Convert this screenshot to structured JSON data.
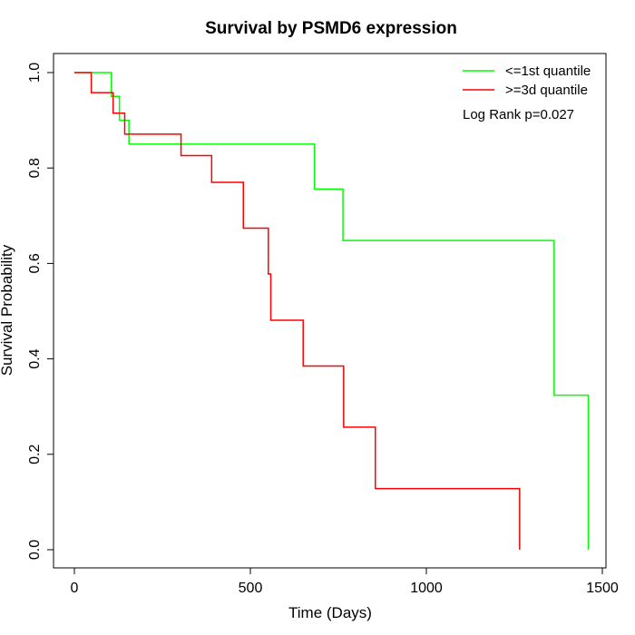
{
  "chart_data": {
    "type": "line",
    "title": "Survival by PSMD6 expression",
    "xlabel": "Time (Days)",
    "ylabel": "Survival Probability",
    "xlim": [
      0,
      1500
    ],
    "ylim": [
      0,
      1
    ],
    "x_ticks": [
      0,
      500,
      1000,
      1500
    ],
    "x_tick_labels": [
      "0",
      "500",
      "1000",
      "1500"
    ],
    "y_ticks": [
      0,
      0.2,
      0.4,
      0.6,
      0.8,
      1.0
    ],
    "y_tick_labels": [
      "0.0",
      "0.2",
      "0.4",
      "0.6",
      "0.8",
      "1.0"
    ],
    "grid": false,
    "legend_position": "top-right",
    "annotation": "Log Rank p=0.027",
    "series": [
      {
        "name": "<=1st quantile",
        "color": "#00ff00",
        "step": true,
        "points": [
          [
            0,
            1.0
          ],
          [
            105,
            1.0
          ],
          [
            105,
            0.95
          ],
          [
            128,
            0.95
          ],
          [
            128,
            0.9
          ],
          [
            155,
            0.9
          ],
          [
            155,
            0.85
          ],
          [
            682,
            0.85
          ],
          [
            682,
            0.756
          ],
          [
            763,
            0.756
          ],
          [
            763,
            0.648
          ],
          [
            1363,
            0.648
          ],
          [
            1363,
            0.324
          ],
          [
            1460,
            0.324
          ],
          [
            1460,
            0.0
          ]
        ]
      },
      {
        "name": ">=3d quantile",
        "color": "#ff0000",
        "step": true,
        "points": [
          [
            0,
            1.0
          ],
          [
            48,
            1.0
          ],
          [
            48,
            0.958
          ],
          [
            110,
            0.958
          ],
          [
            110,
            0.915
          ],
          [
            143,
            0.915
          ],
          [
            143,
            0.871
          ],
          [
            303,
            0.871
          ],
          [
            303,
            0.826
          ],
          [
            390,
            0.826
          ],
          [
            390,
            0.77
          ],
          [
            480,
            0.77
          ],
          [
            480,
            0.674
          ],
          [
            551,
            0.674
          ],
          [
            551,
            0.578
          ],
          [
            558,
            0.578
          ],
          [
            558,
            0.481
          ],
          [
            650,
            0.481
          ],
          [
            650,
            0.385
          ],
          [
            765,
            0.385
          ],
          [
            765,
            0.257
          ],
          [
            855,
            0.257
          ],
          [
            855,
            0.128
          ],
          [
            1265,
            0.128
          ],
          [
            1265,
            0.0
          ]
        ]
      }
    ]
  }
}
